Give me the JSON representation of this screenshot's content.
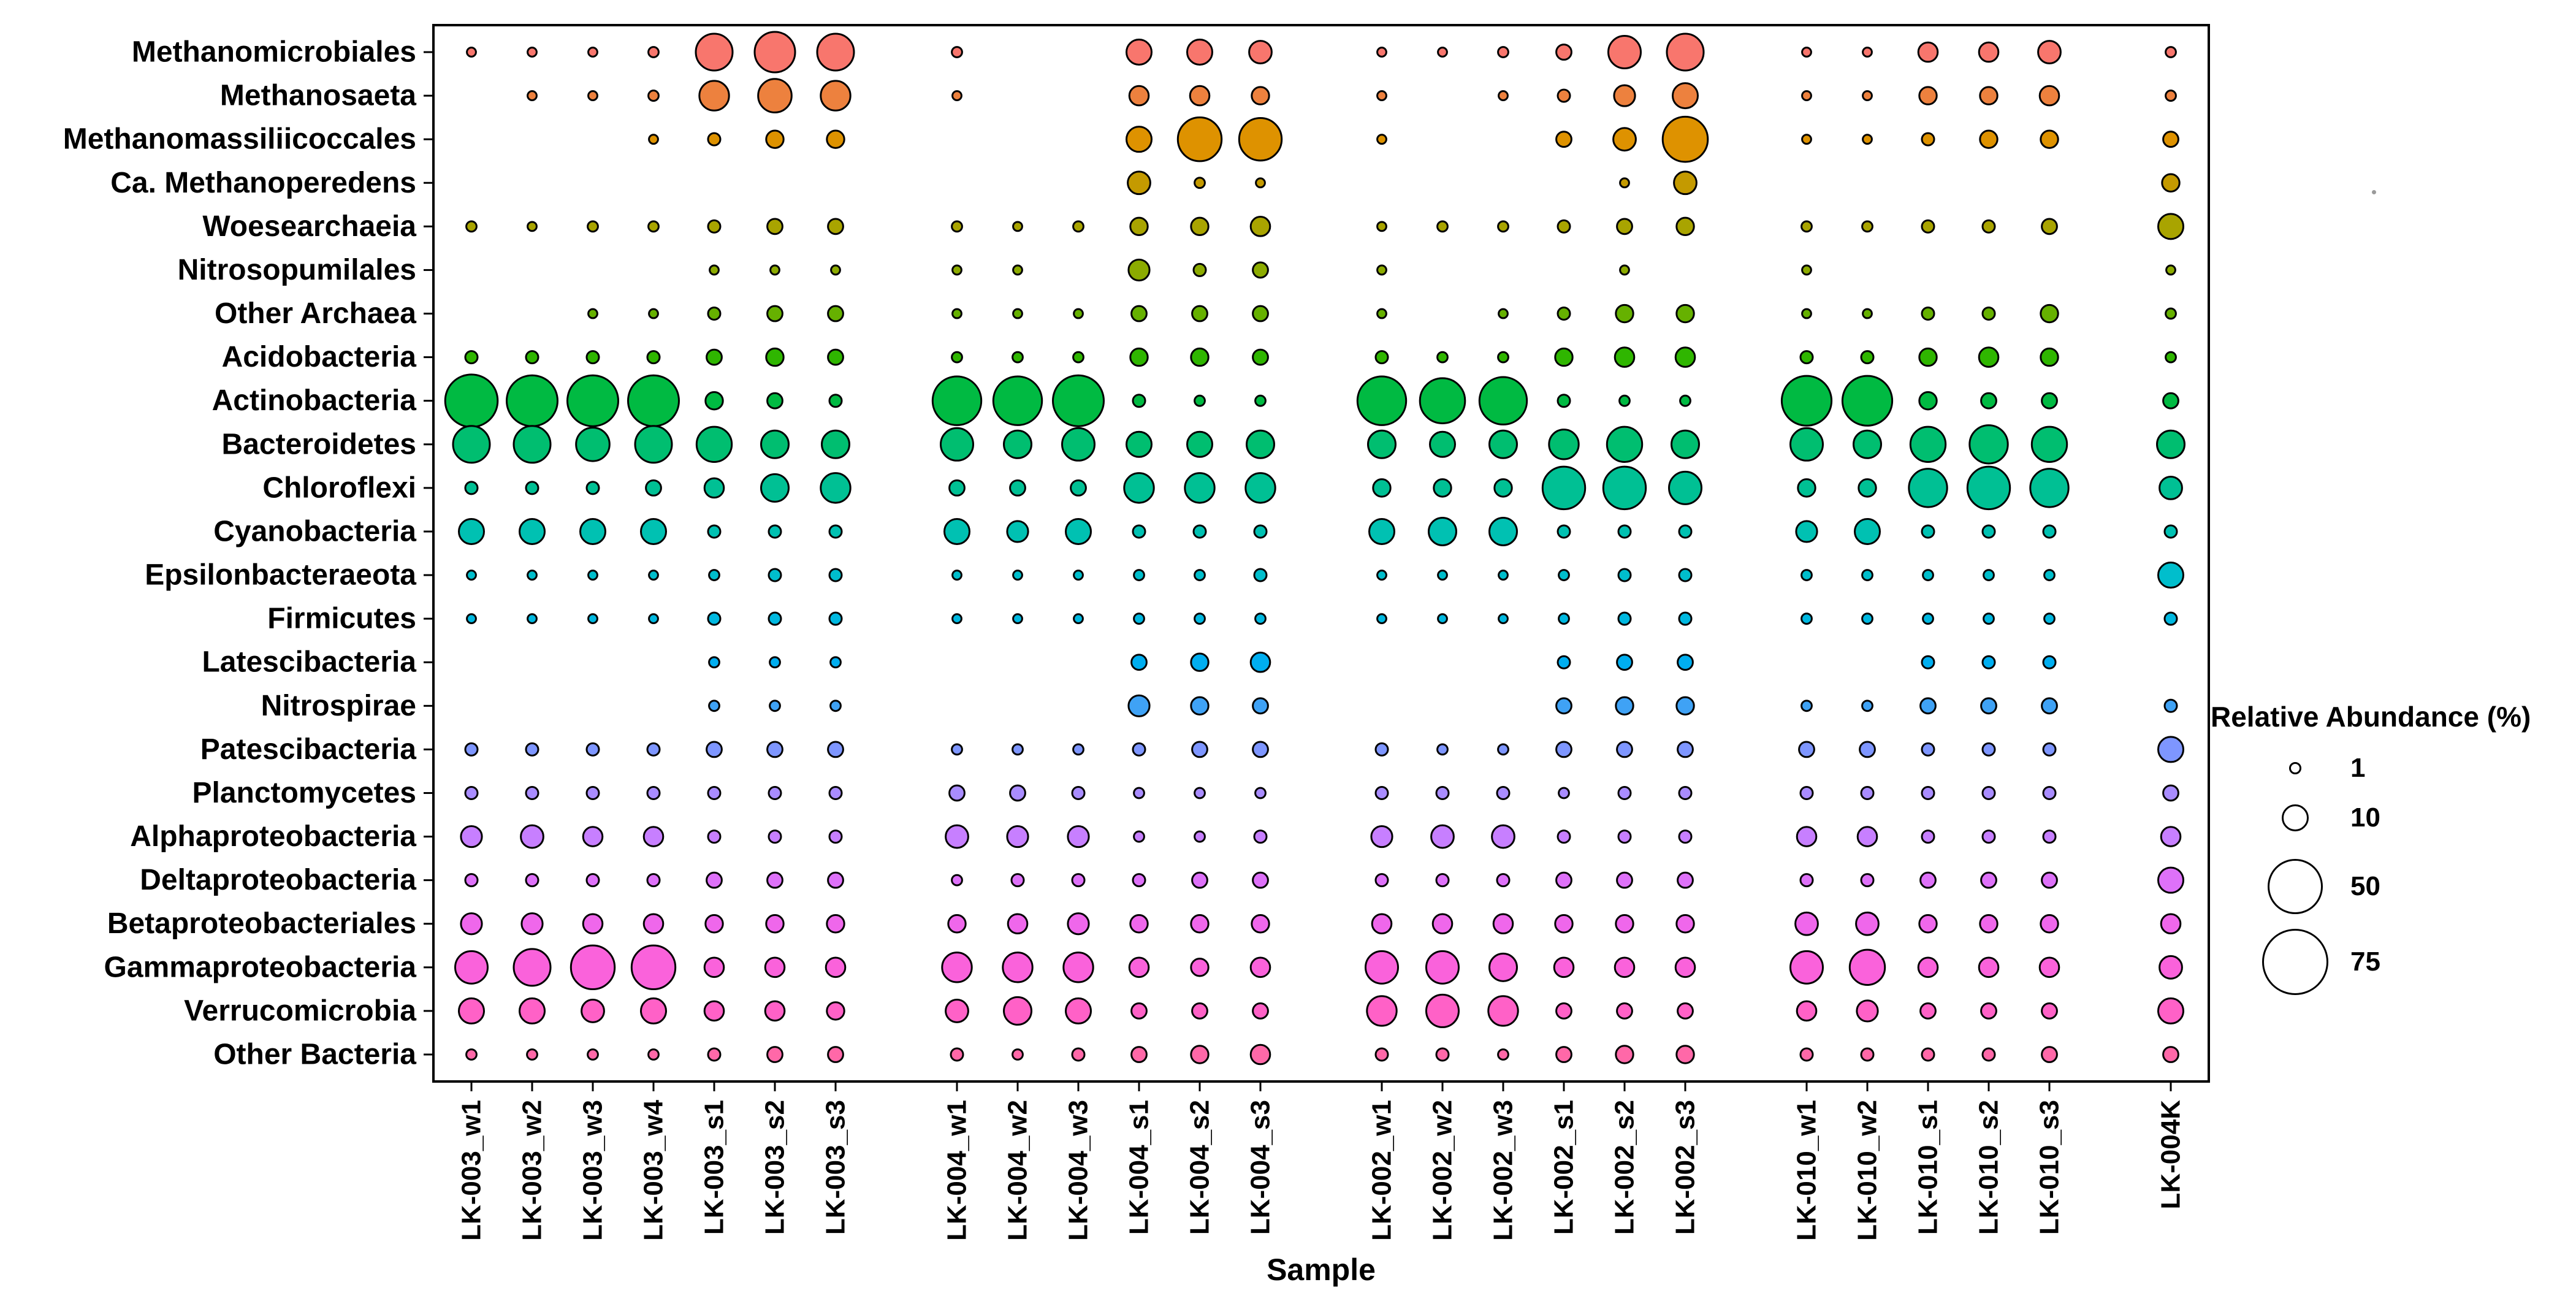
{
  "chart_data": {
    "type": "scatter",
    "subtype": "bubble-matrix",
    "title": "",
    "xlabel": "Sample",
    "ylabel": "",
    "legend_title": "Relative Abundance (%)",
    "legend_sizes": [
      1,
      10,
      50,
      75
    ],
    "legend_position": "right",
    "grid": false,
    "group_sizes": [
      7,
      6,
      6,
      5,
      1
    ],
    "samples": [
      "LK-003_w1",
      "LK-003_w2",
      "LK-003_w3",
      "LK-003_w4",
      "LK-003_s1",
      "LK-003_s2",
      "LK-003_s3",
      "LK-004_w1",
      "LK-004_w2",
      "LK-004_w3",
      "LK-004_s1",
      "LK-004_s2",
      "LK-004_s3",
      "LK-002_w1",
      "LK-002_w2",
      "LK-002_w3",
      "LK-002_s1",
      "LK-002_s2",
      "LK-002_s3",
      "LK-010_w1",
      "LK-010_w2",
      "LK-010_s1",
      "LK-010_s2",
      "LK-010_s3",
      "LK-004K"
    ],
    "taxa": [
      {
        "name": "Methanomicrobiales",
        "color": "#F8766D",
        "values": [
          0.3,
          0.3,
          0.3,
          0.5,
          20,
          25,
          20,
          0.5,
          0,
          0,
          8,
          8,
          6,
          0.3,
          0.3,
          0.5,
          2,
          15,
          20,
          0.3,
          0.3,
          4,
          4,
          6,
          0.5
        ]
      },
      {
        "name": "Methanosaeta",
        "color": "#ED813E",
        "values": [
          0,
          0.3,
          0.3,
          0.5,
          12,
          16,
          12,
          0.3,
          0,
          0,
          4,
          4,
          3,
          0.3,
          0,
          0.3,
          1,
          5,
          8,
          0.3,
          0.3,
          3,
          3,
          4,
          0.5
        ]
      },
      {
        "name": "Methanomassiliicoccales",
        "color": "#DE9200",
        "values": [
          0,
          0,
          0,
          0.3,
          1,
          3,
          3,
          0,
          0,
          0,
          8,
          30,
          28,
          0.3,
          0,
          0,
          2,
          6,
          32,
          0.3,
          0.3,
          1,
          3,
          3,
          2
        ]
      },
      {
        "name": "Ca. Methanoperedens",
        "color": "#C49A00",
        "values": [
          0,
          0,
          0,
          0,
          0,
          0,
          0,
          0,
          0,
          0,
          6,
          0.5,
          0.3,
          0,
          0,
          0,
          0,
          0.3,
          6,
          0,
          0,
          0,
          0,
          0,
          3
        ]
      },
      {
        "name": "Woesearchaeia",
        "color": "#A9A400",
        "values": [
          0.5,
          0.3,
          0.5,
          0.5,
          1,
          2,
          2,
          0.5,
          0.3,
          0.5,
          3,
          3,
          4,
          0.3,
          0.5,
          0.5,
          1,
          2,
          3,
          0.5,
          0.5,
          1,
          1,
          2,
          8
        ]
      },
      {
        "name": "Nitrosopumilales",
        "color": "#8CAB00",
        "values": [
          0,
          0,
          0,
          0,
          0.3,
          0.3,
          0.3,
          0.3,
          0.3,
          0,
          5,
          1,
          2,
          0.3,
          0,
          0,
          0,
          0.3,
          0,
          0.3,
          0,
          0,
          0,
          0,
          0.3
        ]
      },
      {
        "name": "Other Archaea",
        "color": "#66B100",
        "values": [
          0,
          0,
          0.3,
          0.3,
          1,
          2,
          2,
          0.3,
          0.3,
          0.3,
          2,
          2,
          2,
          0.3,
          0,
          0.3,
          1,
          3,
          3,
          0.3,
          0.3,
          1,
          1,
          3,
          0.5
        ]
      },
      {
        "name": "Acidobacteria",
        "color": "#2FB600",
        "values": [
          1,
          1,
          1,
          1,
          2,
          3,
          2,
          0.5,
          0.5,
          0.5,
          3,
          3,
          2,
          1,
          0.5,
          0.5,
          3,
          4,
          4,
          1,
          1,
          3,
          4,
          3,
          0.5
        ]
      },
      {
        "name": "Actinobacteria",
        "color": "#00BA42",
        "values": [
          45,
          42,
          42,
          42,
          3,
          2,
          1,
          38,
          38,
          42,
          1,
          0.5,
          0.5,
          38,
          32,
          36,
          1,
          0.5,
          0.5,
          40,
          40,
          3,
          2,
          2,
          2
        ]
      },
      {
        "name": "Bacteroidetes",
        "color": "#00BE70",
        "values": [
          20,
          20,
          16,
          20,
          18,
          10,
          10,
          15,
          10,
          15,
          8,
          8,
          10,
          10,
          8,
          10,
          12,
          18,
          10,
          15,
          10,
          18,
          22,
          18,
          10
        ]
      },
      {
        "name": "Chloroflexi",
        "color": "#00C094",
        "values": [
          1,
          1,
          1,
          2,
          4,
          10,
          12,
          2,
          2,
          2,
          12,
          12,
          12,
          3,
          3,
          3,
          28,
          28,
          15,
          3,
          3,
          22,
          28,
          22,
          6
        ]
      },
      {
        "name": "Cyanobacteria",
        "color": "#00C1B2",
        "values": [
          8,
          8,
          8,
          8,
          1,
          1,
          1,
          8,
          5,
          8,
          1,
          1,
          1,
          8,
          10,
          10,
          1,
          1,
          1,
          5,
          8,
          1,
          1,
          1,
          1
        ]
      },
      {
        "name": "Epsilonbacteraeota",
        "color": "#00BECC",
        "values": [
          0.3,
          0.3,
          0.3,
          0.3,
          0.5,
          1,
          1,
          0.3,
          0.3,
          0.3,
          0.5,
          0.5,
          1,
          0.3,
          0.3,
          0.3,
          0.5,
          1,
          1,
          0.5,
          0.5,
          0.5,
          0.5,
          0.5,
          8
        ]
      },
      {
        "name": "Firmicutes",
        "color": "#00B8E0",
        "values": [
          0.3,
          0.3,
          0.3,
          0.3,
          1,
          1,
          1,
          0.3,
          0.3,
          0.3,
          0.5,
          0.5,
          0.5,
          0.3,
          0.3,
          0.3,
          0.5,
          1,
          1,
          0.5,
          0.5,
          0.5,
          0.5,
          0.5,
          1
        ]
      },
      {
        "name": "Latescibacteria",
        "color": "#00AEF0",
        "values": [
          0,
          0,
          0,
          0,
          0.5,
          0.5,
          0.5,
          0,
          0,
          0,
          2,
          3,
          4,
          0,
          0,
          0,
          1,
          2,
          2,
          0,
          0,
          1,
          1,
          1,
          0
        ]
      },
      {
        "name": "Nitrospirae",
        "color": "#3FA2F5",
        "values": [
          0,
          0,
          0,
          0,
          0.5,
          0.5,
          0.5,
          0,
          0,
          0,
          5,
          3,
          2,
          0,
          0,
          0,
          2,
          3,
          3,
          0.5,
          0.5,
          2,
          2,
          2,
          1
        ]
      },
      {
        "name": "Patescibacteria",
        "color": "#7E96FF",
        "values": [
          1,
          1,
          1,
          1,
          2,
          2,
          2,
          0.5,
          0.5,
          0.5,
          1,
          2,
          2,
          1,
          0.5,
          0.5,
          2,
          2,
          2,
          2,
          2,
          1,
          1,
          1,
          8
        ]
      },
      {
        "name": "Planctomycetes",
        "color": "#A98CFF",
        "values": [
          1,
          1,
          1,
          1,
          1,
          1,
          1,
          2,
          2,
          1,
          0.5,
          0.5,
          0.5,
          1,
          1,
          1,
          0.5,
          1,
          1,
          1,
          1,
          1,
          1,
          1,
          2
        ]
      },
      {
        "name": "Alphaproteobacteria",
        "color": "#C77FFF",
        "values": [
          5,
          6,
          4,
          4,
          1,
          1,
          1,
          6,
          5,
          5,
          0.5,
          0.5,
          1,
          5,
          6,
          6,
          1,
          1,
          1,
          4,
          4,
          1,
          1,
          1,
          4
        ]
      },
      {
        "name": "Deltaproteobacteria",
        "color": "#DE71F9",
        "values": [
          1,
          1,
          1,
          1,
          2,
          2,
          2,
          0.5,
          1,
          1,
          1,
          2,
          2,
          1,
          1,
          1,
          2,
          2,
          2,
          1,
          1,
          2,
          2,
          2,
          8
        ]
      },
      {
        "name": "Betaproteobacteriales",
        "color": "#EF67EB",
        "values": [
          5,
          5,
          4,
          4,
          3,
          3,
          3,
          3,
          4,
          5,
          3,
          3,
          3,
          4,
          4,
          4,
          3,
          3,
          3,
          6,
          6,
          3,
          3,
          3,
          4
        ]
      },
      {
        "name": "Gammaproteobacteria",
        "color": "#FA62DB",
        "values": [
          15,
          20,
          30,
          30,
          4,
          4,
          4,
          12,
          12,
          12,
          4,
          3,
          4,
          15,
          15,
          10,
          4,
          4,
          4,
          15,
          18,
          4,
          4,
          4,
          6
        ]
      },
      {
        "name": "Verrucomicrobia",
        "color": "#FF61C7",
        "values": [
          8,
          8,
          6,
          8,
          4,
          4,
          3,
          6,
          10,
          8,
          2,
          2,
          2,
          12,
          15,
          12,
          2,
          2,
          2,
          4,
          5,
          2,
          2,
          2,
          8
        ]
      },
      {
        "name": "Other Bacteria",
        "color": "#FF68A8",
        "values": [
          0.5,
          0.5,
          0.5,
          0.5,
          1,
          2,
          2,
          1,
          0.5,
          1,
          2,
          3,
          4,
          1,
          1,
          0.5,
          2,
          3,
          3,
          1,
          1,
          1,
          1,
          2,
          2
        ]
      }
    ]
  }
}
